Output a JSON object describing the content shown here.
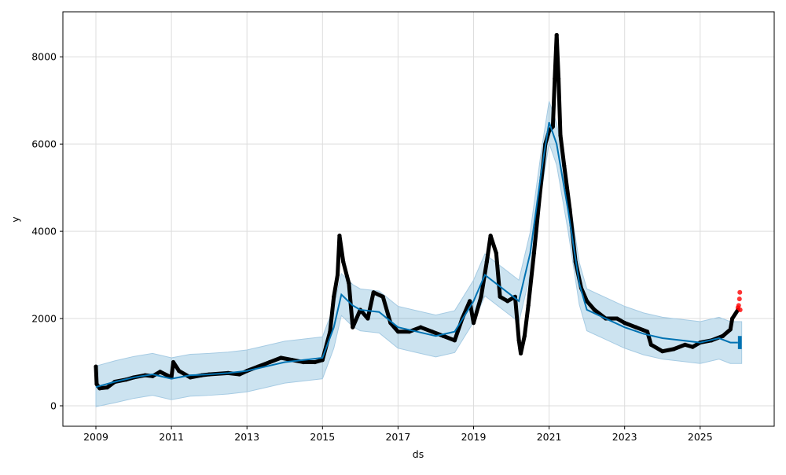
{
  "chart_data": {
    "type": "line",
    "title": "",
    "xlabel": "ds",
    "ylabel": "y",
    "xlim": [
      2008.2,
      2026.9
    ],
    "ylim": [
      -450,
      9000
    ],
    "grid": true,
    "x_ticks": [
      "2009",
      "2011",
      "2013",
      "2015",
      "2017",
      "2019",
      "2021",
      "2023",
      "2025"
    ],
    "y_ticks": [
      "0",
      "2000",
      "4000",
      "6000",
      "8000"
    ],
    "colors": {
      "forecast": "#0072B2",
      "band": "#a6cbe3",
      "actual": "#000000",
      "recent": "#ff0000"
    },
    "series": [
      {
        "name": "yhat",
        "points": [
          [
            2009,
            430
          ],
          [
            2009.5,
            550
          ],
          [
            2010,
            650
          ],
          [
            2010.5,
            720
          ],
          [
            2011,
            620
          ],
          [
            2011.5,
            700
          ],
          [
            2012,
            720
          ],
          [
            2012.5,
            750
          ],
          [
            2013,
            800
          ],
          [
            2013.5,
            900
          ],
          [
            2014,
            1000
          ],
          [
            2014.5,
            1050
          ],
          [
            2015,
            1100
          ],
          [
            2015.3,
            1800
          ],
          [
            2015.5,
            2550
          ],
          [
            2015.8,
            2300
          ],
          [
            2016,
            2200
          ],
          [
            2016.5,
            2150
          ],
          [
            2017,
            1800
          ],
          [
            2017.5,
            1700
          ],
          [
            2018,
            1600
          ],
          [
            2018.5,
            1700
          ],
          [
            2019,
            2400
          ],
          [
            2019.3,
            3000
          ],
          [
            2019.6,
            2800
          ],
          [
            2019.9,
            2600
          ],
          [
            2020.2,
            2400
          ],
          [
            2020.5,
            3500
          ],
          [
            2020.8,
            5400
          ],
          [
            2021,
            6500
          ],
          [
            2021.2,
            6000
          ],
          [
            2021.5,
            4500
          ],
          [
            2021.8,
            2800
          ],
          [
            2022,
            2200
          ],
          [
            2022.5,
            2000
          ],
          [
            2023,
            1800
          ],
          [
            2023.5,
            1650
          ],
          [
            2024,
            1550
          ],
          [
            2024.5,
            1500
          ],
          [
            2025,
            1450
          ],
          [
            2025.5,
            1550
          ],
          [
            2025.8,
            1450
          ],
          [
            2026,
            1450
          ],
          [
            2026.1,
            1450
          ]
        ],
        "band_halfwidth": 480
      },
      {
        "name": "actual",
        "points": [
          [
            2009.0,
            900
          ],
          [
            2009.02,
            500
          ],
          [
            2009.1,
            400
          ],
          [
            2009.3,
            420
          ],
          [
            2009.5,
            550
          ],
          [
            2009.8,
            600
          ],
          [
            2010.0,
            650
          ],
          [
            2010.3,
            700
          ],
          [
            2010.5,
            680
          ],
          [
            2010.7,
            780
          ],
          [
            2011.0,
            650
          ],
          [
            2011.05,
            1000
          ],
          [
            2011.2,
            800
          ],
          [
            2011.5,
            650
          ],
          [
            2011.8,
            700
          ],
          [
            2012.0,
            720
          ],
          [
            2012.5,
            750
          ],
          [
            2012.8,
            720
          ],
          [
            2013.0,
            800
          ],
          [
            2013.3,
            900
          ],
          [
            2013.6,
            1000
          ],
          [
            2013.9,
            1100
          ],
          [
            2014.2,
            1050
          ],
          [
            2014.5,
            1000
          ],
          [
            2014.8,
            1000
          ],
          [
            2015.0,
            1050
          ],
          [
            2015.2,
            1700
          ],
          [
            2015.3,
            2500
          ],
          [
            2015.4,
            3000
          ],
          [
            2015.45,
            3900
          ],
          [
            2015.55,
            3300
          ],
          [
            2015.7,
            2800
          ],
          [
            2015.8,
            1800
          ],
          [
            2016.0,
            2200
          ],
          [
            2016.2,
            2000
          ],
          [
            2016.35,
            2600
          ],
          [
            2016.6,
            2500
          ],
          [
            2016.8,
            1900
          ],
          [
            2017.0,
            1700
          ],
          [
            2017.3,
            1700
          ],
          [
            2017.6,
            1800
          ],
          [
            2017.9,
            1700
          ],
          [
            2018.2,
            1600
          ],
          [
            2018.5,
            1500
          ],
          [
            2018.7,
            2000
          ],
          [
            2018.9,
            2400
          ],
          [
            2019.0,
            1900
          ],
          [
            2019.2,
            2500
          ],
          [
            2019.35,
            3300
          ],
          [
            2019.45,
            3900
          ],
          [
            2019.6,
            3500
          ],
          [
            2019.7,
            2500
          ],
          [
            2019.9,
            2400
          ],
          [
            2020.1,
            2500
          ],
          [
            2020.2,
            1500
          ],
          [
            2020.25,
            1200
          ],
          [
            2020.35,
            1600
          ],
          [
            2020.45,
            2300
          ],
          [
            2020.6,
            3500
          ],
          [
            2020.75,
            4800
          ],
          [
            2020.9,
            6000
          ],
          [
            2021.0,
            6300
          ],
          [
            2021.1,
            6400
          ],
          [
            2021.15,
            7500
          ],
          [
            2021.2,
            8500
          ],
          [
            2021.25,
            7500
          ],
          [
            2021.3,
            6200
          ],
          [
            2021.4,
            5500
          ],
          [
            2021.55,
            4500
          ],
          [
            2021.7,
            3300
          ],
          [
            2021.85,
            2700
          ],
          [
            2022.0,
            2400
          ],
          [
            2022.2,
            2200
          ],
          [
            2022.5,
            2000
          ],
          [
            2022.8,
            2000
          ],
          [
            2023.0,
            1900
          ],
          [
            2023.3,
            1800
          ],
          [
            2023.6,
            1700
          ],
          [
            2023.7,
            1400
          ],
          [
            2024.0,
            1250
          ],
          [
            2024.3,
            1300
          ],
          [
            2024.6,
            1400
          ],
          [
            2024.8,
            1350
          ],
          [
            2025.0,
            1450
          ],
          [
            2025.3,
            1500
          ],
          [
            2025.6,
            1600
          ],
          [
            2025.8,
            1750
          ],
          [
            2025.85,
            2000
          ],
          [
            2026.0,
            2200
          ]
        ]
      },
      {
        "name": "recent",
        "points": [
          [
            2026.0,
            2250
          ],
          [
            2026.02,
            2300
          ],
          [
            2026.04,
            2450
          ],
          [
            2026.05,
            2600
          ],
          [
            2026.06,
            2200
          ]
        ]
      }
    ]
  }
}
